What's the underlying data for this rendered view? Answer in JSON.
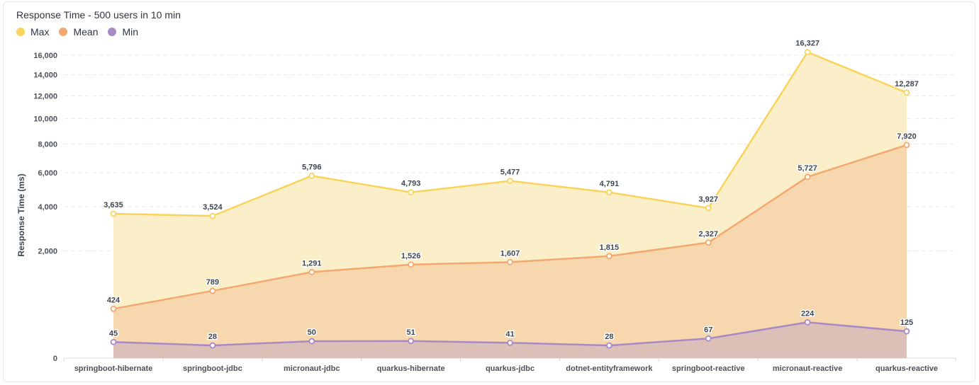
{
  "chart_data": {
    "type": "area",
    "title": "Response Time - 500 users in 10 min",
    "ylabel": "Response Time (ms)",
    "xlabel": "",
    "y_scale": "sqrt",
    "ylim": [
      0,
      17000
    ],
    "yticks": [
      0,
      2000,
      4000,
      6000,
      8000,
      10000,
      12000,
      14000,
      16000
    ],
    "ytick_labels": [
      "0",
      "2,000",
      "4,000",
      "6,000",
      "8,000",
      "10,000",
      "12,000",
      "14,000",
      "16,000"
    ],
    "grid": true,
    "legend_position": "top-left",
    "categories": [
      "springboot-hibernate",
      "springboot-jdbc",
      "micronaut-jdbc",
      "quarkus-hibernate",
      "quarkus-jdbc",
      "dotnet-entityframework",
      "springboot-reactive",
      "micronaut-reactive",
      "quarkus-reactive"
    ],
    "series": [
      {
        "name": "Max",
        "color": "#f9d45c",
        "values": [
          3635,
          3524,
          5796,
          4793,
          5477,
          4791,
          3927,
          16327,
          12287
        ],
        "labels": [
          "3,635",
          "3,524",
          "5,796",
          "4,793",
          "5,477",
          "4,791",
          "3,927",
          "16,327",
          "12,287"
        ]
      },
      {
        "name": "Mean",
        "color": "#f2a86f",
        "values": [
          424,
          789,
          1291,
          1526,
          1607,
          1815,
          2327,
          5727,
          7920
        ],
        "labels": [
          "424",
          "789",
          "1,291",
          "1,526",
          "1,607",
          "1,815",
          "2,327",
          "5,727",
          "7,920"
        ]
      },
      {
        "name": "Min",
        "color": "#a989c5",
        "values": [
          45,
          28,
          50,
          51,
          41,
          28,
          67,
          224,
          125
        ],
        "labels": [
          "45",
          "28",
          "50",
          "51",
          "41",
          "28",
          "67",
          "224",
          "125"
        ]
      }
    ]
  }
}
